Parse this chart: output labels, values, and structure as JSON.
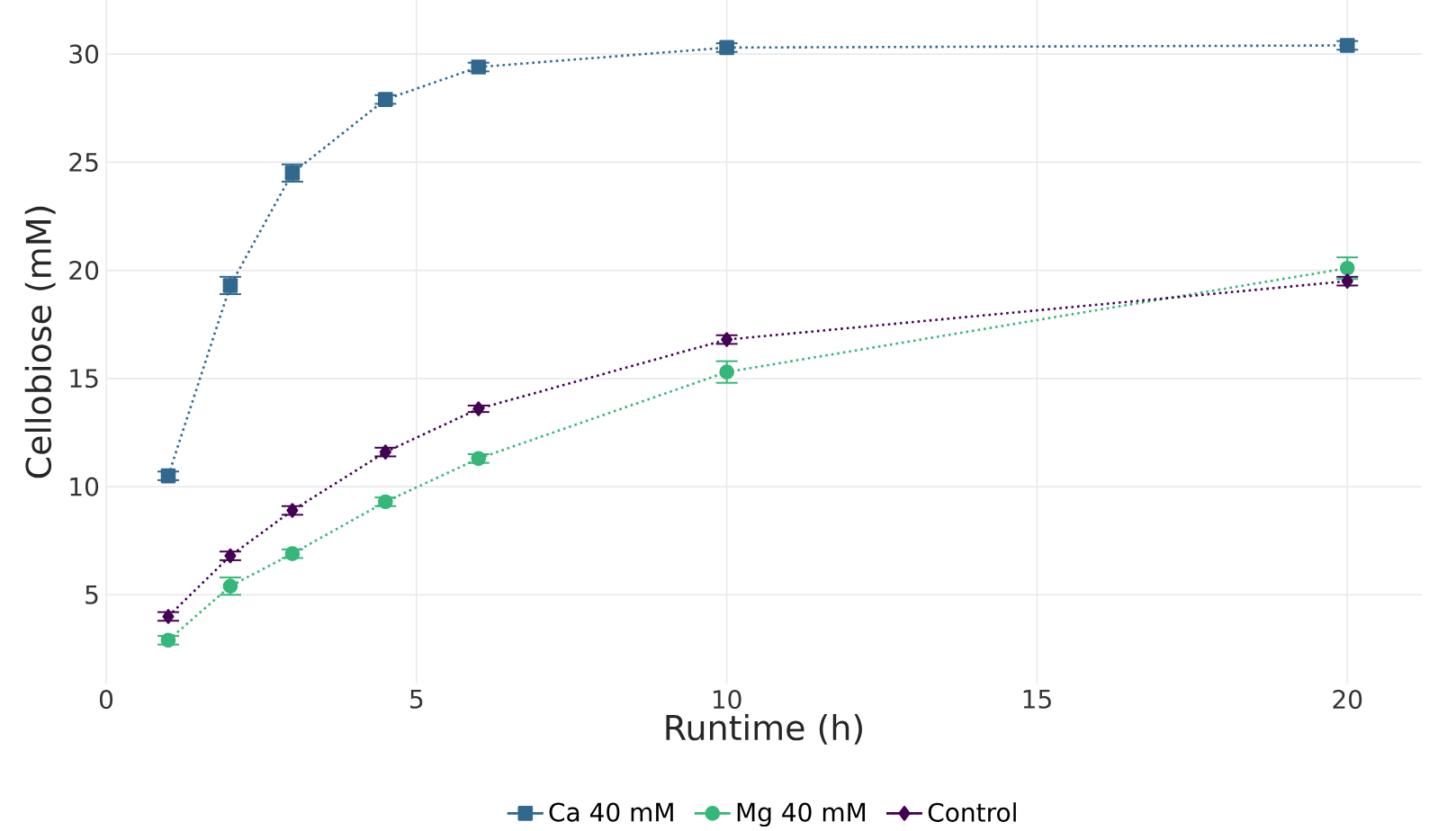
{
  "chart_data": {
    "type": "line",
    "xlabel": "Runtime (h)",
    "ylabel": "Cellobiose (mM)",
    "xlim": [
      0,
      21.2
    ],
    "ylim": [
      0.9,
      32.5
    ],
    "xticks": [
      0,
      5,
      10,
      15,
      20
    ],
    "yticks": [
      5,
      10,
      15,
      20,
      25,
      30
    ],
    "grid": true,
    "legend": "bottom",
    "line_style": "dotted",
    "series": [
      {
        "name": "Ca 40 mM",
        "color": "#31688e",
        "marker": "square",
        "x": [
          1,
          2,
          3,
          4.5,
          6,
          10,
          20
        ],
        "values": [
          10.5,
          19.3,
          24.5,
          27.9,
          29.4,
          30.3,
          30.4
        ],
        "errors": [
          0.2,
          0.4,
          0.4,
          0.2,
          0.2,
          0.2,
          0.2
        ]
      },
      {
        "name": "Mg 40 mM",
        "color": "#35b779",
        "marker": "circle",
        "x": [
          1,
          2,
          3,
          4.5,
          6,
          10,
          20
        ],
        "values": [
          2.9,
          5.4,
          6.9,
          9.3,
          11.3,
          15.3,
          20.1
        ],
        "errors": [
          0.2,
          0.4,
          0.2,
          0.2,
          0.2,
          0.5,
          0.5
        ]
      },
      {
        "name": "Control",
        "color": "#440154",
        "marker": "diamond",
        "x": [
          1,
          2,
          3,
          4.5,
          6,
          10,
          20
        ],
        "values": [
          4.0,
          6.8,
          8.9,
          11.6,
          13.6,
          16.8,
          19.5
        ],
        "errors": [
          0.2,
          0.2,
          0.2,
          0.2,
          0.15,
          0.2,
          0.2
        ]
      }
    ]
  }
}
